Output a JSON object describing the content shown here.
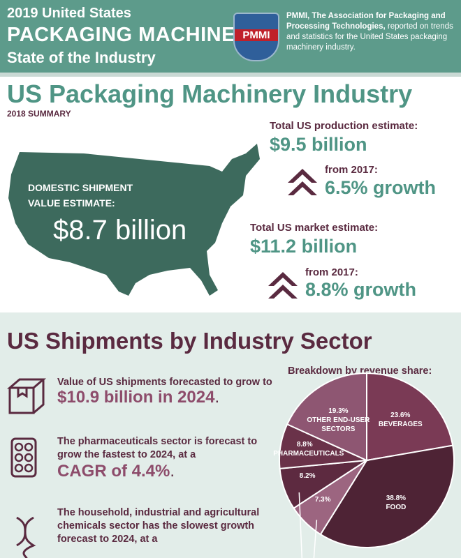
{
  "header": {
    "line1": "2019 United States",
    "line2": "PACKAGING MACHINERY",
    "line3": "State of the Industry",
    "logo": "PMMI",
    "org_name": "PMMI, The Association for Packaging and Processing Technologies,",
    "org_text": "reported on trends and statistics for the United States packaging machinery industry."
  },
  "summary": {
    "title": "US Packaging Machinery Industry",
    "subtitle": "2018 SUMMARY",
    "domestic_label": "DOMESTIC SHIPMENT VALUE ESTIMATE:",
    "domestic_value": "$8.7 billion",
    "production_label": "Total US production estimate:",
    "production_value": "$9.5 billion",
    "production_growth_label": "from 2017:",
    "production_growth": "6.5% growth",
    "market_label": "Total US market estimate:",
    "market_value": "$11.2 billion",
    "market_growth_label": "from 2017:",
    "market_growth": "8.8% growth"
  },
  "sectors": {
    "title": "US Shipments by Industry Sector",
    "items": [
      {
        "text": "Value of US shipments forecasted to grow to",
        "highlight": "$10.9 billion in 2024",
        "end": "."
      },
      {
        "text": "The pharmaceuticals sector is forecast to grow the fastest to 2024, at a",
        "highlight": "CAGR of 4.4%",
        "end": "."
      },
      {
        "text": "The household, industrial and agricultural chemicals sector has the slowest growth forecast to 2024, at a"
      }
    ]
  },
  "chart_data": {
    "type": "pie",
    "title": "Breakdown by revenue share:",
    "categories": [
      "BEVERAGES",
      "FOOD",
      null,
      null,
      "PHARMACEUTICALS",
      "OTHER END-USER SECTORS"
    ],
    "values": [
      23.6,
      38.8,
      7.3,
      8.2,
      8.8,
      19.3
    ],
    "value_labels": [
      "23.6%",
      "38.8%",
      "7.3%",
      "8.2%",
      "8.8%",
      "19.3%"
    ],
    "colors": [
      "#7a3a55",
      "#4e2335",
      "#9c6580",
      "#5d2a40",
      "#6a3249",
      "#8e5672"
    ]
  }
}
